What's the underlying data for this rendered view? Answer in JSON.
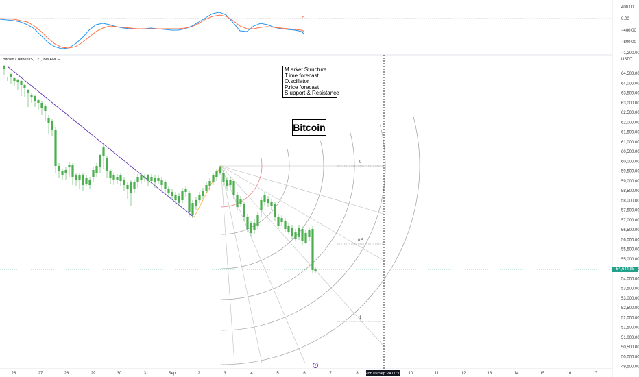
{
  "symbol": {
    "title": "Bitcoin / TetherUS, 121, BINANCE"
  },
  "annotations": {
    "mtops_lines": [
      "M.arket Structure",
      "T.ime forecast",
      "O.scillator",
      "P.rice forecast",
      "S.upport & Resistance"
    ],
    "bitcoin_label": "Bitcoin"
  },
  "price_axis": {
    "currency": "USDT",
    "labels": [
      "64,500.00",
      "64,000.00",
      "63,500.00",
      "63,000.00",
      "62,500.00",
      "62,000.00",
      "61,500.00",
      "61,000.00",
      "60,500.00",
      "60,000.00",
      "59,500.00",
      "59,000.00",
      "58,500.00",
      "58,000.00",
      "57,500.00",
      "57,000.00",
      "56,500.00",
      "56,000.00",
      "55,500.00",
      "55,000.00",
      "54,500.00",
      "54,000.00",
      "53,500.00",
      "53,000.00",
      "52,500.00",
      "52,000.00",
      "51,500.00",
      "51,000.00",
      "50,500.00",
      "50,000.00",
      "49,500.00"
    ],
    "current_price": "54,644.85"
  },
  "oscillator_axis": {
    "labels": [
      "400.00",
      "0.00",
      "−400.00",
      "−800.00",
      "−1,200.00"
    ]
  },
  "date_axis": {
    "labels": [
      "26",
      "27",
      "28",
      "29",
      "30",
      "31",
      "Sep",
      "2",
      "3",
      "4",
      "5",
      "6",
      "7",
      "8",
      "10",
      "11",
      "12",
      "13",
      "14",
      "15",
      "16",
      "17"
    ]
  },
  "crosshair": {
    "label": "Mon 09 Sep '24   00:16"
  },
  "fib_levels": [
    "0",
    "0.5",
    "1"
  ],
  "colors": {
    "up": "#4caf50",
    "down": "#2e7d32",
    "trend_line": "#5e35b1",
    "price_tag": "#22a08a",
    "macd": "#2196f3",
    "signal": "#ff7043"
  }
}
